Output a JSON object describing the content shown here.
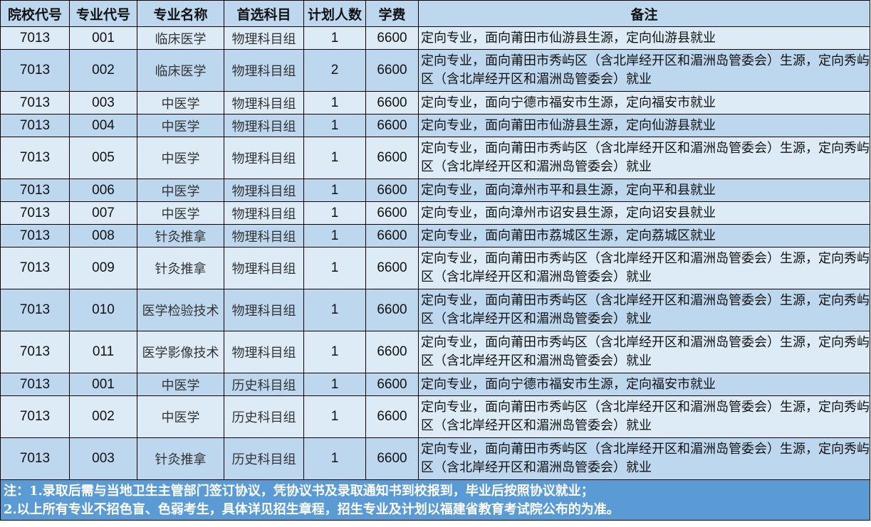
{
  "headers": [
    "院校代号",
    "专业代号",
    "专业名称",
    "首选科目",
    "计划人数",
    "学费",
    "备注"
  ],
  "rows": [
    [
      "7013",
      "001",
      "临床医学",
      "物理科目组",
      "1",
      "6600",
      "定向专业，面向莆田市仙游县生源，定向仙游县就业"
    ],
    [
      "7013",
      "002",
      "临床医学",
      "物理科目组",
      "2",
      "6600",
      "定向专业，面向莆田市秀屿区（含北岸经开区和湄洲岛管委会）生源，定向秀屿区（含北岸经开区和湄洲岛管委会）就业"
    ],
    [
      "7013",
      "003",
      "中医学",
      "物理科目组",
      "1",
      "6600",
      "定向专业，面向宁德市福安市生源，定向福安市就业"
    ],
    [
      "7013",
      "004",
      "中医学",
      "物理科目组",
      "1",
      "6600",
      "定向专业，面向莆田市仙游县生源，定向仙游县就业"
    ],
    [
      "7013",
      "005",
      "中医学",
      "物理科目组",
      "1",
      "6600",
      "定向专业，面向莆田市秀屿区（含北岸经开区和湄洲岛管委会）生源，定向秀屿区（含北岸经开区和湄洲岛管委会）就业"
    ],
    [
      "7013",
      "006",
      "中医学",
      "物理科目组",
      "1",
      "6600",
      "定向专业，面向漳州市平和县生源，定向平和县就业"
    ],
    [
      "7013",
      "007",
      "中医学",
      "物理科目组",
      "1",
      "6600",
      "定向专业，面向漳州市诏安县生源，定向诏安县就业"
    ],
    [
      "7013",
      "008",
      "针灸推拿",
      "物理科目组",
      "1",
      "6600",
      "定向专业，面向莆田市荔城区生源，定向荔城区就业"
    ],
    [
      "7013",
      "009",
      "针灸推拿",
      "物理科目组",
      "1",
      "6600",
      "定向专业，面向莆田市秀屿区（含北岸经开区和湄洲岛管委会）生源，定向秀屿区（含北岸经开区和湄洲岛管委会）就业"
    ],
    [
      "7013",
      "010",
      "医学检验技术",
      "物理科目组",
      "1",
      "6600",
      "定向专业，面向莆田市秀屿区（含北岸经开区和湄洲岛管委会）生源，定向秀屿区（含北岸经开区和湄洲岛管委会）就业"
    ],
    [
      "7013",
      "011",
      "医学影像技术",
      "物理科目组",
      "1",
      "6600",
      "定向专业，面向莆田市秀屿区（含北岸经开区和湄洲岛管委会）生源，定向秀屿区（含北岸经开区和湄洲岛管委会）就业"
    ],
    [
      "7013",
      "001",
      "中医学",
      "历史科目组",
      "1",
      "6600",
      "定向专业，面向宁德市福安市生源，定向福安市就业"
    ],
    [
      "7013",
      "002",
      "中医学",
      "历史科目组",
      "1",
      "6600",
      "定向专业，面向莆田市秀屿区（含北岸经开区和湄洲岛管委会）生源，定向秀屿区（含北岸经开区和湄洲岛管委会）就业"
    ],
    [
      "7013",
      "003",
      "针灸推拿",
      "历史科目组",
      "1",
      "6600",
      "定向专业，面向莆田市秀屿区（含北岸经开区和湄洲岛管委会）生源，定向秀屿区（含北岸经开区和湄洲岛管委会）就业"
    ]
  ],
  "footer": {
    "line1": "注：1.录取后需与当地卫生主管部门签订协议，凭协议书及录取通知书到校报到，毕业后按照协议就业；",
    "line2": "2.以上所有专业不招色盲、色弱考生，具体详见招生章程，招生专业及计划以福建省教育考试院公布的为准。"
  },
  "colors": {
    "header_bg": "#bdd7ee",
    "row_light": "#ddebf7",
    "row_dark": "#bdd7ee",
    "footer_bg": "#5b9bd5"
  }
}
